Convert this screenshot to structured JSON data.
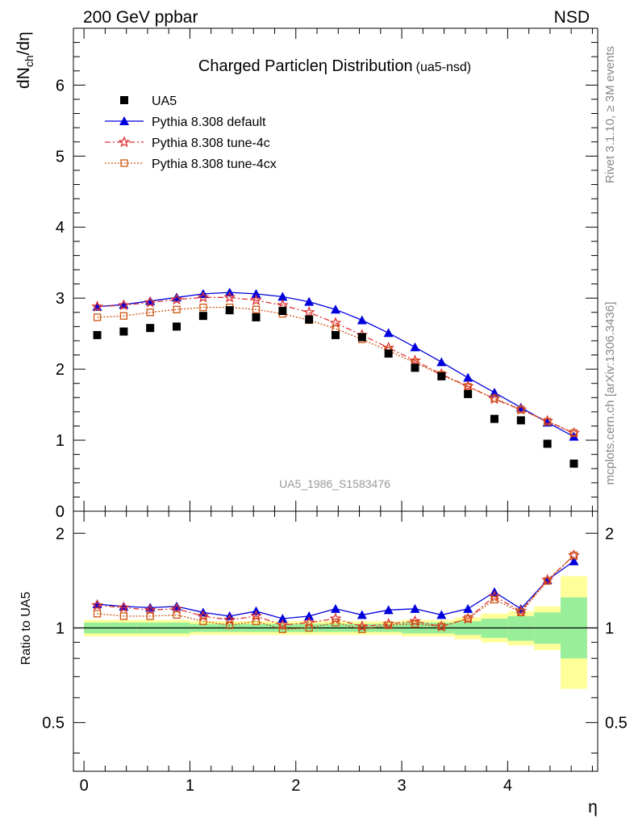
{
  "header": {
    "energy_label": "200 GeV ppbar",
    "process_label": "NSD",
    "plot_title": "Charged Particle",
    "plot_title_symbol": "η",
    "plot_title_tail": " Distribution",
    "plot_title_suffix": "(ua5-nsd)",
    "watermark": "UA5_1986_S1583476",
    "side_label_top": "Rivet 3.1.10, ≥ 3M events",
    "side_label_bottom": "mcplots.cern.ch [arXiv:1306.3436]"
  },
  "axes": {
    "main_ylabel": "dN",
    "main_ylabel_sub": "ch",
    "main_ylabel_tail": "/dη",
    "ratio_ylabel": "Ratio to UA5",
    "xlabel": "η"
  },
  "colors": {
    "data": "#000000",
    "default": "#0000dd",
    "tune4c": "#dd3333",
    "tune4cx": "#cc5511",
    "band_outer": "#ffff99",
    "band_inner": "#99ee99"
  },
  "chart_data": [
    {
      "type": "scatter",
      "panel": "main",
      "xlim": [
        -0.1,
        4.85
      ],
      "ylim": [
        0,
        6.8
      ],
      "xticks": [
        0,
        1,
        2,
        3,
        4
      ],
      "yticks": [
        0,
        1,
        2,
        3,
        4,
        5,
        6
      ],
      "legend_position": "top-left",
      "x": [
        0.125,
        0.375,
        0.625,
        0.875,
        1.125,
        1.375,
        1.625,
        1.875,
        2.125,
        2.375,
        2.625,
        2.875,
        3.125,
        3.375,
        3.625,
        3.875,
        4.125,
        4.375,
        4.625
      ],
      "series": [
        {
          "name": "UA5",
          "key": "data",
          "style": "square",
          "values": [
            2.48,
            2.53,
            2.58,
            2.6,
            2.75,
            2.83,
            2.73,
            2.82,
            2.7,
            2.48,
            2.45,
            2.22,
            2.02,
            1.9,
            1.65,
            1.3,
            1.28,
            0.95,
            0.67
          ]
        },
        {
          "name": "Pythia 8.308 default",
          "key": "default",
          "style": "solid-triangle",
          "values": [
            2.88,
            2.91,
            2.96,
            3.01,
            3.06,
            3.08,
            3.06,
            3.02,
            2.95,
            2.84,
            2.69,
            2.51,
            2.31,
            2.1,
            1.88,
            1.67,
            1.46,
            1.25,
            1.05
          ]
        },
        {
          "name": "Pythia 8.308 tune-4c",
          "key": "tune4c",
          "style": "dashdot-star",
          "values": [
            2.88,
            2.9,
            2.94,
            2.98,
            3.01,
            3.01,
            2.97,
            2.9,
            2.8,
            2.65,
            2.48,
            2.3,
            2.12,
            1.93,
            1.76,
            1.58,
            1.43,
            1.27,
            1.1
          ]
        },
        {
          "name": "Pythia 8.308 tune-4cx",
          "key": "tune4cx",
          "style": "dotted-open-square",
          "values": [
            2.73,
            2.75,
            2.8,
            2.84,
            2.87,
            2.87,
            2.84,
            2.78,
            2.69,
            2.57,
            2.42,
            2.26,
            2.09,
            1.92,
            1.75,
            1.59,
            1.43,
            1.26,
            1.1
          ]
        }
      ]
    },
    {
      "type": "line",
      "panel": "ratio",
      "xlim": [
        -0.1,
        4.85
      ],
      "ylim": [
        0.35,
        2.35
      ],
      "yscale": "log",
      "yticks": [
        0.5,
        1,
        2
      ],
      "x": [
        0.125,
        0.375,
        0.625,
        0.875,
        1.125,
        1.375,
        1.625,
        1.875,
        2.125,
        2.375,
        2.625,
        2.875,
        3.125,
        3.375,
        3.625,
        3.875,
        4.125,
        4.375,
        4.625
      ],
      "bands": {
        "stat_low": [
          0.96,
          0.96,
          0.96,
          0.96,
          0.97,
          0.97,
          0.97,
          0.97,
          0.97,
          0.97,
          0.97,
          0.97,
          0.96,
          0.96,
          0.95,
          0.93,
          0.91,
          0.89,
          0.8
        ],
        "stat_high": [
          1.04,
          1.04,
          1.04,
          1.04,
          1.03,
          1.03,
          1.03,
          1.03,
          1.03,
          1.03,
          1.03,
          1.03,
          1.04,
          1.04,
          1.05,
          1.07,
          1.09,
          1.12,
          1.25
        ],
        "total_low": [
          0.94,
          0.94,
          0.94,
          0.94,
          0.95,
          0.95,
          0.95,
          0.95,
          0.95,
          0.95,
          0.95,
          0.95,
          0.94,
          0.94,
          0.92,
          0.9,
          0.88,
          0.85,
          0.64
        ],
        "total_high": [
          1.06,
          1.06,
          1.06,
          1.06,
          1.05,
          1.05,
          1.05,
          1.05,
          1.05,
          1.05,
          1.05,
          1.05,
          1.06,
          1.06,
          1.08,
          1.11,
          1.13,
          1.17,
          1.46
        ]
      },
      "series": [
        {
          "name": "Pythia 8.308 default",
          "key": "default",
          "values": [
            1.19,
            1.17,
            1.16,
            1.17,
            1.12,
            1.09,
            1.13,
            1.07,
            1.09,
            1.15,
            1.1,
            1.14,
            1.15,
            1.1,
            1.15,
            1.3,
            1.15,
            1.42,
            1.63
          ]
        },
        {
          "name": "Pythia 8.308 tune-4c",
          "key": "tune4c",
          "values": [
            1.18,
            1.16,
            1.14,
            1.15,
            1.09,
            1.06,
            1.09,
            1.02,
            1.04,
            1.07,
            1.01,
            1.03,
            1.05,
            1.01,
            1.07,
            1.26,
            1.13,
            1.42,
            1.7
          ]
        },
        {
          "name": "Pythia 8.308 tune-4cx",
          "key": "tune4cx",
          "values": [
            1.11,
            1.09,
            1.09,
            1.1,
            1.05,
            1.02,
            1.05,
            0.99,
            1.0,
            1.04,
            0.99,
            1.02,
            1.03,
            1.01,
            1.07,
            1.23,
            1.12,
            1.41,
            1.7
          ]
        }
      ]
    }
  ]
}
